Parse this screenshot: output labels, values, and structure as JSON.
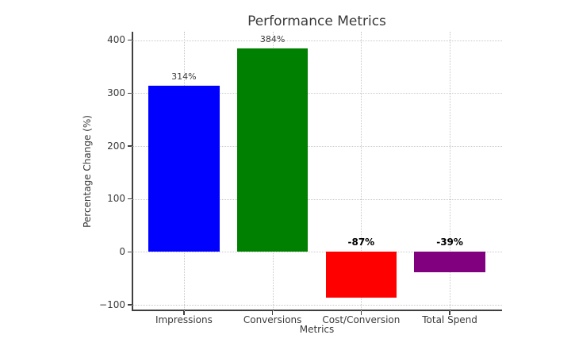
{
  "chart_data": {
    "type": "bar",
    "title": "Performance Metrics",
    "xlabel": "Metrics",
    "ylabel": "Percentage Change (%)",
    "categories": [
      "Impressions",
      "Conversions",
      "Cost/Conversion",
      "Total Spend"
    ],
    "values": [
      314,
      384,
      -87,
      -39
    ],
    "value_labels": [
      "314%",
      "384%",
      "-87%",
      "-39%"
    ],
    "value_label_bold": [
      false,
      false,
      true,
      true
    ],
    "bar_colors": [
      "#0000ff",
      "#008000",
      "#ff0000",
      "#800080"
    ],
    "y_ticks": [
      400,
      300,
      200,
      100,
      0,
      -100
    ],
    "y_tick_labels": [
      "400",
      "300",
      "200",
      "100",
      "0",
      "−100"
    ],
    "ylim": [
      -112,
      416
    ],
    "grid": "dotted",
    "legend": "none",
    "colors": {
      "text": "#3a3a3a",
      "grid": "#c9c9c9",
      "spine": "#3f3f3f",
      "negative_label_text": "#000000",
      "background": "#ffffff"
    }
  }
}
